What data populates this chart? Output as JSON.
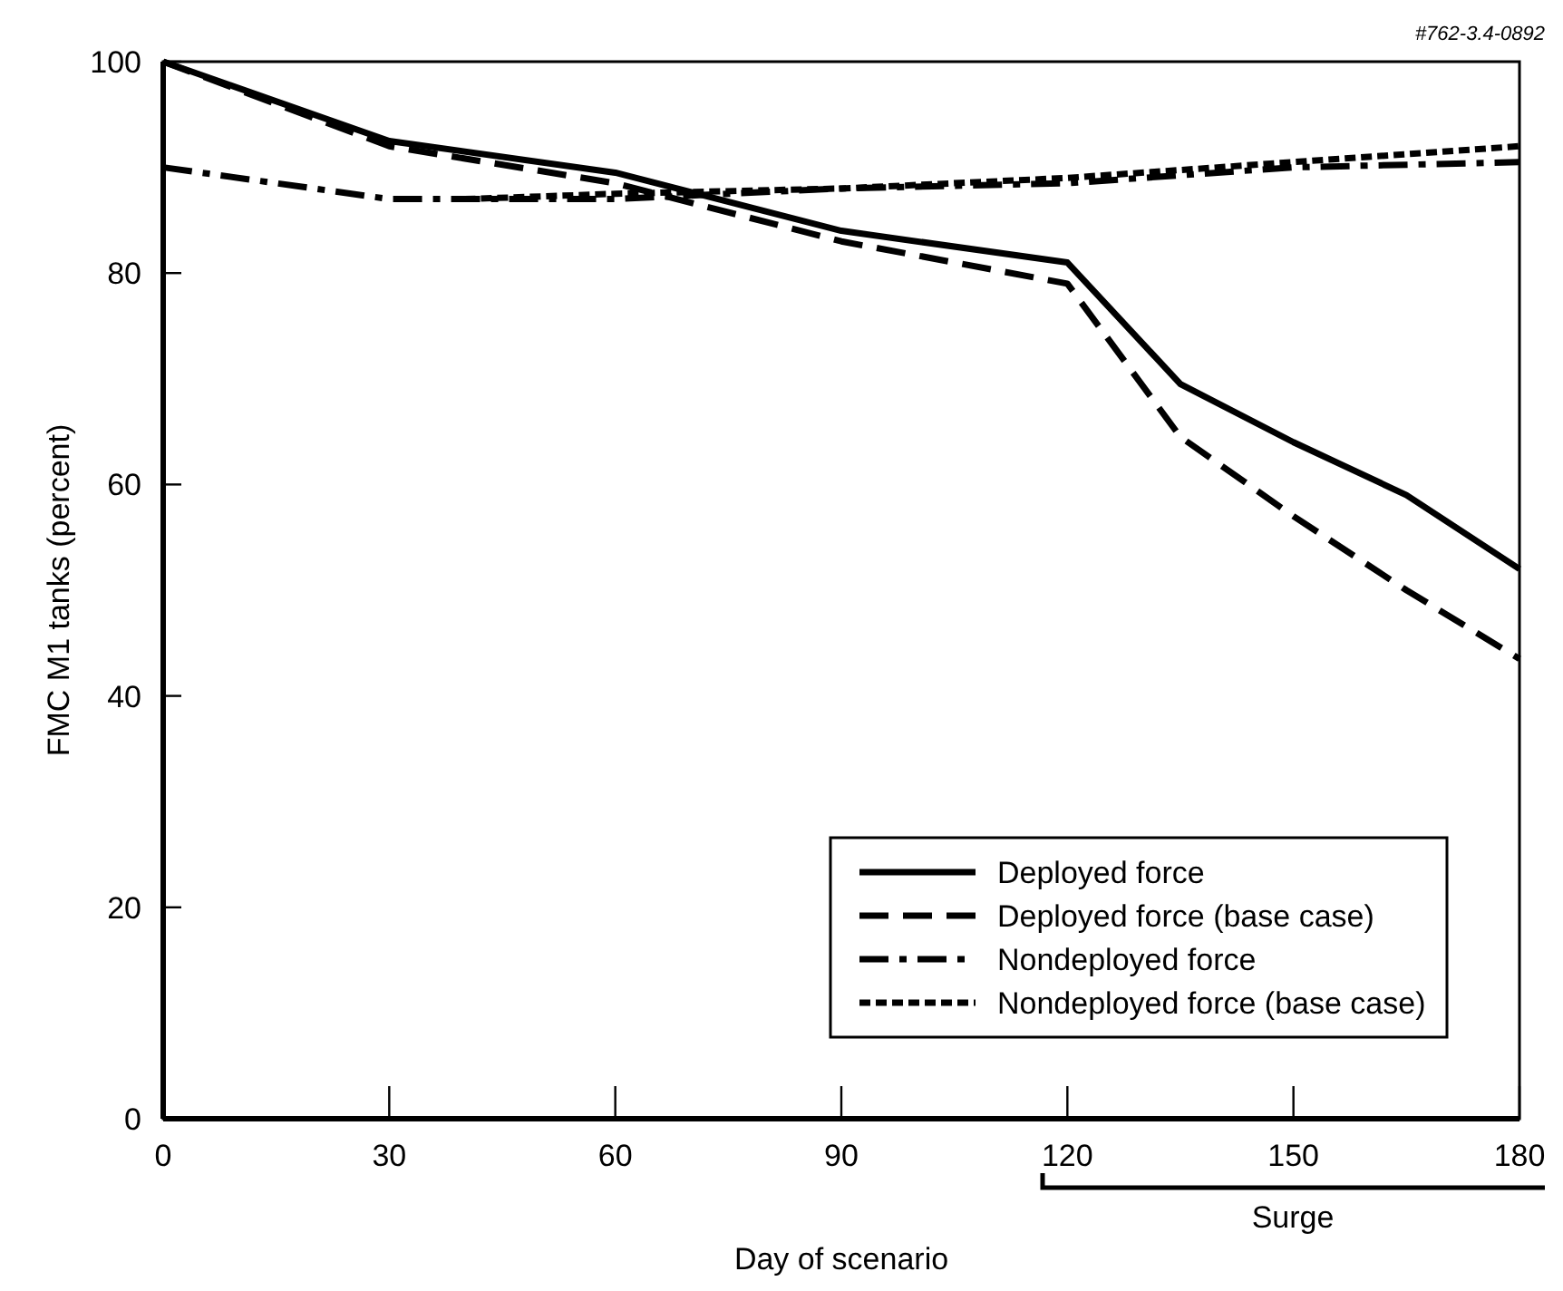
{
  "chart_data": {
    "type": "line",
    "xlabel": "Day of scenario",
    "ylabel": "FMC M1 tanks (percent)",
    "xlim": [
      0,
      180
    ],
    "xticks": [
      0,
      30,
      60,
      90,
      120,
      150,
      180
    ],
    "ylim": [
      0,
      100
    ],
    "yticks": [
      0,
      20,
      40,
      60,
      80,
      100
    ],
    "grid": false,
    "legend": "bottom right",
    "annotations": [
      "#762-3.4-0892",
      "Surge"
    ],
    "series": [
      {
        "name": "Deployed force",
        "color": "#000000",
        "line_style": "solid",
        "x": [
          0,
          30,
          60,
          90,
          120,
          135,
          150,
          165,
          180
        ],
        "values": [
          100,
          92.5,
          89.5,
          84,
          81,
          69.5,
          64,
          59,
          52
        ]
      },
      {
        "name": "Deployed force (base case)",
        "color": "#000000",
        "line_style": "dashed",
        "x": [
          0,
          30,
          60,
          90,
          120,
          135,
          150,
          165,
          180
        ],
        "values": [
          100,
          92,
          88.5,
          83,
          79,
          64.5,
          57,
          50,
          43.5
        ]
      },
      {
        "name": "Nondeployed force",
        "color": "#000000",
        "line_style": "dashdot",
        "x": [
          0,
          30,
          60,
          90,
          120,
          150,
          180
        ],
        "values": [
          90,
          87,
          87,
          88,
          88.5,
          90,
          90.5
        ]
      },
      {
        "name": "Nondeployed force (base case)",
        "color": "#000000",
        "line_style": "dotted",
        "x": [
          40,
          60,
          90,
          120,
          150,
          180
        ],
        "values": [
          87,
          87.5,
          88,
          89,
          90.5,
          92
        ]
      }
    ]
  }
}
